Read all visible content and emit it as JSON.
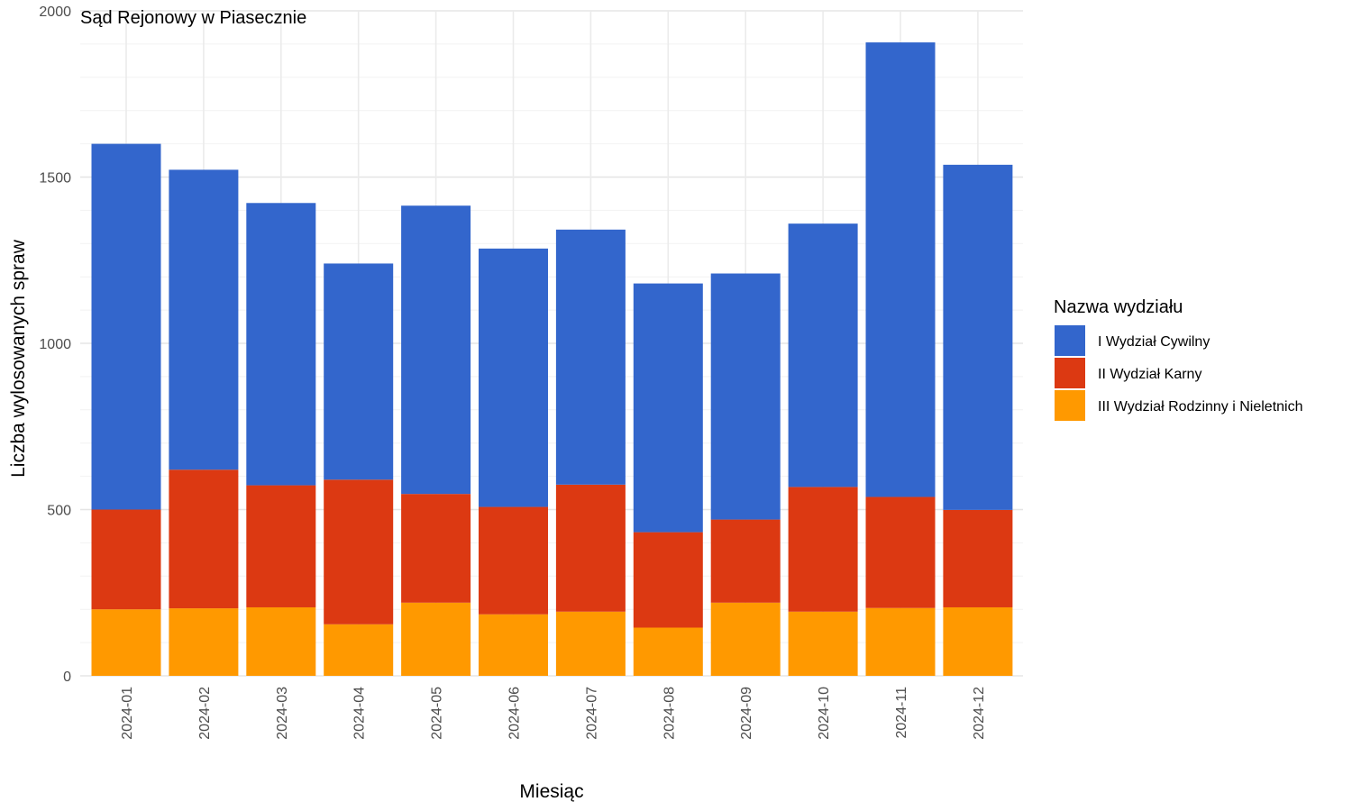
{
  "chart_data": {
    "type": "bar",
    "stacked": true,
    "title": "Sąd Rejonowy w Piasecznie",
    "xlabel": "Miesiąc",
    "ylabel": "Liczba wylosowanych spraw",
    "ylim": [
      0,
      2000
    ],
    "yticks": [
      0,
      500,
      1000,
      1500,
      2000
    ],
    "grid": true,
    "legend_title": "Nazwa wydziału",
    "legend_position": "right",
    "categories": [
      "2024-01",
      "2024-02",
      "2024-03",
      "2024-04",
      "2024-05",
      "2024-06",
      "2024-07",
      "2024-08",
      "2024-09",
      "2024-10",
      "2024-11",
      "2024-12"
    ],
    "series": [
      {
        "name": "III Wydział Rodzinny i Nieletnich",
        "color": "#FF9900",
        "values": [
          200,
          203,
          206,
          155,
          220,
          185,
          193,
          145,
          220,
          193,
          204,
          206
        ]
      },
      {
        "name": "II Wydział Karny",
        "color": "#DC3912",
        "values": [
          300,
          417,
          367,
          435,
          327,
          323,
          382,
          287,
          250,
          375,
          334,
          293
        ]
      },
      {
        "name": "I Wydział Cywilny",
        "color": "#3366CC",
        "values": [
          1100,
          902,
          849,
          650,
          867,
          777,
          767,
          748,
          740,
          792,
          1367,
          1038
        ]
      }
    ],
    "legend_order": [
      "I Wydział Cywilny",
      "II Wydział Karny",
      "III Wydział Rodzinny i Nieletnich"
    ]
  }
}
